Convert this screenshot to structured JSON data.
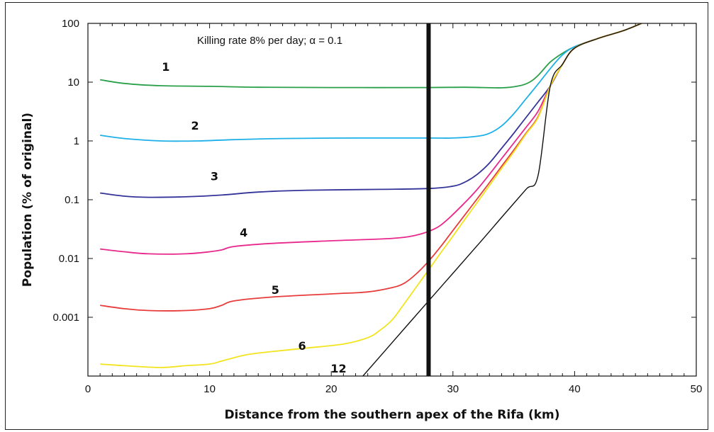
{
  "chart_data": {
    "type": "line",
    "title": "",
    "annotation": "Killing rate 8% per day; α = 0.1",
    "xlabel": "Distance from the southern apex of the Rifa (km)",
    "ylabel": "Population (% of original)",
    "xlim": [
      0,
      50
    ],
    "ylim": [
      0.0001,
      100
    ],
    "yscale": "log",
    "grid": false,
    "x_ticks": [
      "0",
      "10",
      "20",
      "30",
      "40",
      "50"
    ],
    "y_ticks": [
      {
        "value": 100,
        "label": "100"
      },
      {
        "value": 10,
        "label": "10"
      },
      {
        "value": 1,
        "label": "1"
      },
      {
        "value": 0.1,
        "label": "0.1"
      },
      {
        "value": 0.01,
        "label": "0.01"
      },
      {
        "value": 0.001,
        "label": "0.001"
      }
    ],
    "vertical_line": {
      "x": 28,
      "color": "#111111"
    },
    "series": [
      {
        "name": "1",
        "color": "#2aa04a",
        "points": [
          [
            1,
            11
          ],
          [
            3,
            9.5
          ],
          [
            6,
            8.7
          ],
          [
            10,
            8.5
          ],
          [
            14,
            8.2
          ],
          [
            20,
            8.1
          ],
          [
            28,
            8.1
          ],
          [
            31,
            8.2
          ],
          [
            34,
            8
          ],
          [
            35.5,
            8.7
          ],
          [
            36.3,
            10
          ],
          [
            37,
            13
          ],
          [
            38,
            22
          ],
          [
            39,
            31
          ],
          [
            40,
            40
          ],
          [
            42,
            56
          ],
          [
            44,
            75
          ],
          [
            45.5,
            100
          ]
        ]
      },
      {
        "name": "2",
        "color": "#1eb0e8",
        "points": [
          [
            1,
            1.25
          ],
          [
            3,
            1.1
          ],
          [
            6,
            1.0
          ],
          [
            9,
            1.0
          ],
          [
            12,
            1.05
          ],
          [
            16,
            1.1
          ],
          [
            22,
            1.12
          ],
          [
            28,
            1.12
          ],
          [
            30,
            1.12
          ],
          [
            32,
            1.2
          ],
          [
            33,
            1.35
          ],
          [
            34,
            1.8
          ],
          [
            35,
            2.9
          ],
          [
            36,
            5.2
          ],
          [
            37,
            9.3
          ],
          [
            38,
            17
          ],
          [
            39,
            29
          ],
          [
            40,
            40
          ],
          [
            42,
            56
          ],
          [
            44,
            75
          ],
          [
            45.5,
            100
          ]
        ]
      },
      {
        "name": "3",
        "color": "#333399",
        "points": [
          [
            1,
            0.13
          ],
          [
            3,
            0.115
          ],
          [
            5,
            0.11
          ],
          [
            8,
            0.112
          ],
          [
            11,
            0.12
          ],
          [
            14,
            0.135
          ],
          [
            18,
            0.145
          ],
          [
            24,
            0.15
          ],
          [
            28,
            0.155
          ],
          [
            30,
            0.17
          ],
          [
            31,
            0.2
          ],
          [
            32,
            0.27
          ],
          [
            33,
            0.42
          ],
          [
            34,
            0.75
          ],
          [
            35,
            1.35
          ],
          [
            36,
            2.5
          ],
          [
            37,
            4.6
          ],
          [
            38,
            8.6
          ],
          [
            39,
            20
          ],
          [
            40,
            38
          ],
          [
            42,
            56
          ],
          [
            44,
            75
          ],
          [
            45.5,
            100
          ]
        ]
      },
      {
        "name": "4",
        "color": "#e8288c",
        "points": [
          [
            1,
            0.0145
          ],
          [
            3,
            0.013
          ],
          [
            5,
            0.012
          ],
          [
            8,
            0.012
          ],
          [
            10,
            0.013
          ],
          [
            11,
            0.014
          ],
          [
            12,
            0.016
          ],
          [
            15,
            0.018
          ],
          [
            20,
            0.02
          ],
          [
            25,
            0.022
          ],
          [
            27,
            0.025
          ],
          [
            28.5,
            0.032
          ],
          [
            29.5,
            0.045
          ],
          [
            31,
            0.09
          ],
          [
            32,
            0.15
          ],
          [
            33,
            0.27
          ],
          [
            34,
            0.5
          ],
          [
            35,
            0.92
          ],
          [
            36,
            1.7
          ],
          [
            37,
            3.2
          ],
          [
            38,
            8.6
          ],
          [
            39,
            20
          ],
          [
            40,
            38
          ],
          [
            42,
            56
          ],
          [
            44,
            75
          ],
          [
            45.5,
            100
          ]
        ]
      },
      {
        "name": "5",
        "color": "#e83c3c",
        "points": [
          [
            1,
            0.0016
          ],
          [
            3,
            0.0014
          ],
          [
            5,
            0.0013
          ],
          [
            8,
            0.0013
          ],
          [
            10,
            0.0014
          ],
          [
            11,
            0.0016
          ],
          [
            12,
            0.0019
          ],
          [
            15,
            0.0022
          ],
          [
            20,
            0.0025
          ],
          [
            23,
            0.0027
          ],
          [
            25,
            0.0032
          ],
          [
            26,
            0.0038
          ],
          [
            27,
            0.0055
          ],
          [
            28,
            0.009
          ],
          [
            29,
            0.016
          ],
          [
            30,
            0.03
          ],
          [
            31,
            0.056
          ],
          [
            32,
            0.104
          ],
          [
            33,
            0.195
          ],
          [
            34,
            0.37
          ],
          [
            35,
            0.7
          ],
          [
            36,
            1.35
          ],
          [
            37,
            2.6
          ],
          [
            38,
            8.6
          ],
          [
            39,
            20
          ],
          [
            40,
            38
          ],
          [
            42,
            56
          ],
          [
            44,
            75
          ],
          [
            45.5,
            100
          ]
        ]
      },
      {
        "name": "6",
        "color": "#f2e41e",
        "points": [
          [
            1,
            0.00016
          ],
          [
            3,
            0.00015
          ],
          [
            6,
            0.00014
          ],
          [
            8,
            0.00015
          ],
          [
            10,
            0.00016
          ],
          [
            11,
            0.00018
          ],
          [
            13,
            0.00023
          ],
          [
            15,
            0.00026
          ],
          [
            18,
            0.0003
          ],
          [
            21,
            0.00035
          ],
          [
            23,
            0.00045
          ],
          [
            24,
            0.0006
          ],
          [
            25,
            0.0009
          ],
          [
            26,
            0.0017
          ],
          [
            27,
            0.0033
          ],
          [
            28,
            0.0064
          ],
          [
            29,
            0.0125
          ],
          [
            30,
            0.024
          ],
          [
            31,
            0.047
          ],
          [
            32,
            0.09
          ],
          [
            33,
            0.175
          ],
          [
            34,
            0.34
          ],
          [
            35,
            0.65
          ],
          [
            36,
            1.3
          ],
          [
            37,
            2.5
          ],
          [
            38,
            8.6
          ],
          [
            39,
            20
          ],
          [
            40,
            38
          ],
          [
            42,
            56
          ],
          [
            44,
            75
          ],
          [
            45.5,
            100
          ]
        ]
      },
      {
        "name": "12",
        "color": "#111111",
        "points": [
          [
            22.6,
            0.0001
          ],
          [
            25,
            0.00037
          ],
          [
            28,
            0.0019
          ],
          [
            30,
            0.0056
          ],
          [
            32,
            0.0166
          ],
          [
            34,
            0.05
          ],
          [
            36,
            0.15
          ],
          [
            37,
            0.26
          ],
          [
            38,
            8.6
          ],
          [
            39,
            20
          ],
          [
            40,
            38
          ],
          [
            42,
            56
          ],
          [
            44,
            75
          ],
          [
            45.5,
            100
          ]
        ]
      }
    ],
    "curve_labels": [
      {
        "text": "1",
        "x": 6.4,
        "y": 15.5
      },
      {
        "text": "2",
        "x": 8.8,
        "y": 1.55
      },
      {
        "text": "3",
        "x": 10.4,
        "y": 0.215
      },
      {
        "text": "4",
        "x": 12.8,
        "y": 0.0235
      },
      {
        "text": "5",
        "x": 15.4,
        "y": 0.0025
      },
      {
        "text": "6",
        "x": 17.6,
        "y": 0.00028
      },
      {
        "text": "12",
        "x": 20.6,
        "y": 0.000115
      }
    ]
  }
}
